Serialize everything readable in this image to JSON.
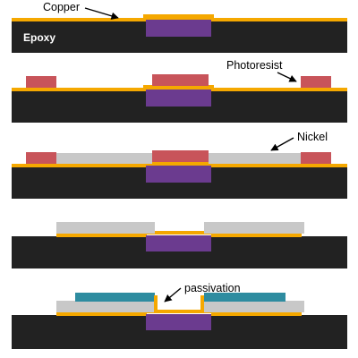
{
  "labels": {
    "copper": "Copper",
    "epoxy": "Epoxy",
    "photoresist": "Photoresist",
    "nickel": "Nickel",
    "passivation": "passivation"
  },
  "colors": {
    "epoxy": "#222222",
    "copper": "#F5A800",
    "pad": "#6B3B8F",
    "photoresist": "#C8545A",
    "nickel": "#C8C8C8",
    "passivation": "#2E8CA0",
    "background": "#FFFFFF"
  }
}
